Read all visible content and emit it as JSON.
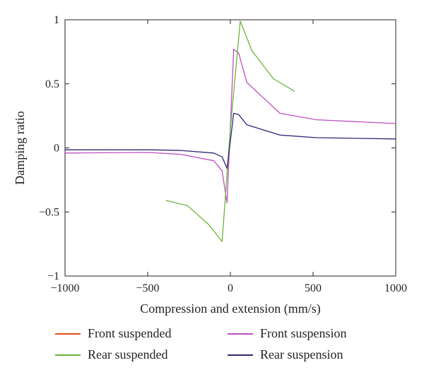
{
  "chart_data": {
    "type": "line",
    "xlabel": "Compression and extension (mm/s)",
    "ylabel": "Damping ratio",
    "xlim": [
      -1000,
      1000
    ],
    "ylim": [
      -1,
      1
    ],
    "xticks": [
      -1000,
      -500,
      0,
      500,
      1000
    ],
    "yticks": [
      -1,
      -0.5,
      0,
      0.5,
      1
    ],
    "xtick_labels": [
      "−1000",
      "−500",
      "0",
      "500",
      "1000"
    ],
    "ytick_labels": [
      "−1",
      "−0.5",
      "0",
      "0.5",
      "1"
    ],
    "grid": false,
    "legend_position": "bottom",
    "series": [
      {
        "name": "Front suspended",
        "color": "#e0501e",
        "x": [],
        "y": []
      },
      {
        "name": "Front suspension",
        "color": "#c050c0",
        "x": [
          -1000,
          -500,
          -300,
          -100,
          -50,
          -20,
          20,
          50,
          100,
          300,
          520,
          1000
        ],
        "y": [
          -0.04,
          -0.035,
          -0.05,
          -0.1,
          -0.18,
          -0.43,
          0.77,
          0.74,
          0.51,
          0.27,
          0.22,
          0.19
        ]
      },
      {
        "name": "Rear suspended",
        "color": "#6ab536",
        "x": [
          -390,
          -260,
          -130,
          -50,
          0,
          60,
          130,
          260,
          390
        ],
        "y": [
          -0.41,
          -0.45,
          -0.6,
          -0.73,
          0.15,
          0.99,
          0.76,
          0.54,
          0.44
        ]
      },
      {
        "name": "Rear suspension",
        "color": "#2a2878",
        "x": [
          -1000,
          -500,
          -300,
          -100,
          -50,
          -20,
          20,
          50,
          100,
          300,
          520,
          1000
        ],
        "y": [
          -0.015,
          -0.015,
          -0.02,
          -0.04,
          -0.07,
          -0.16,
          0.27,
          0.26,
          0.18,
          0.1,
          0.08,
          0.07
        ]
      }
    ]
  }
}
